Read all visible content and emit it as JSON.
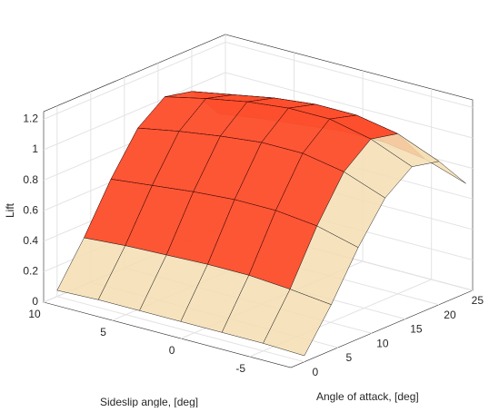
{
  "chart_data": {
    "type": "surface",
    "zlabel": "Lift",
    "ylabel": "Angle of attack, [deg]",
    "xlabel": "Sideslip angle, [deg]",
    "x": [
      -8,
      -5,
      -2,
      1,
      4,
      7,
      10
    ],
    "y": [
      0,
      4,
      8,
      12,
      16,
      20,
      24
    ],
    "z": [
      [
        0.04,
        0.3,
        0.6,
        0.85,
        0.98,
        0.94,
        0.72
      ],
      [
        0.05,
        0.33,
        0.67,
        0.95,
        1.09,
        1.05,
        0.81
      ],
      [
        0.05,
        0.35,
        0.7,
        1.0,
        1.15,
        1.1,
        0.85
      ],
      [
        0.05,
        0.35,
        0.7,
        1.0,
        1.15,
        1.1,
        0.85
      ],
      [
        0.05,
        0.34,
        0.68,
        0.97,
        1.12,
        1.07,
        0.82
      ],
      [
        0.05,
        0.33,
        0.65,
        0.93,
        1.07,
        1.02,
        0.79
      ],
      [
        0.04,
        0.31,
        0.62,
        0.88,
        1.01,
        0.97,
        0.75
      ]
    ],
    "color": "#f5deb3",
    "highlight_color": "#ff2000",
    "xlim": [
      -8,
      10
    ],
    "ylim": [
      -2,
      25
    ],
    "zlim": [
      0,
      1.25
    ],
    "xticks": [
      10,
      5,
      0,
      -5
    ],
    "yticks": [
      0,
      5,
      10,
      15,
      20,
      25
    ],
    "zticks": [
      0,
      0.2,
      0.4,
      0.6,
      0.8,
      1,
      1.2
    ],
    "grid": true
  }
}
